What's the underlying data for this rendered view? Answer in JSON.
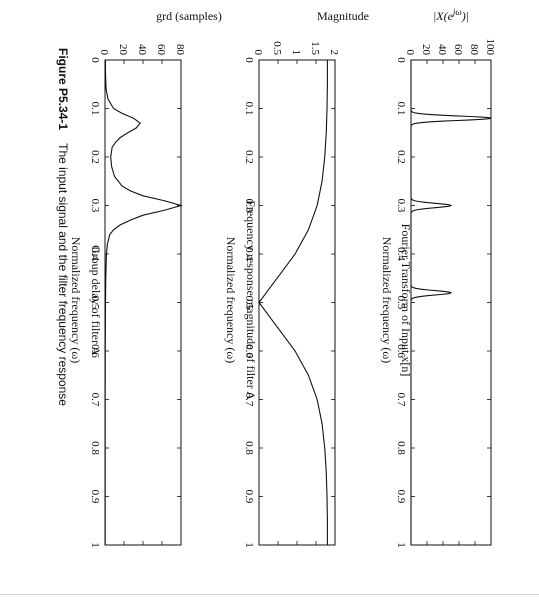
{
  "figure_caption": {
    "label": "Figure P5.34-1",
    "text": "The input signal and the filter frequency response"
  },
  "chart_data": [
    {
      "id": "fourier",
      "type": "line",
      "title": "Fourier Transform of Input x[n]",
      "xlabel": "Normalized frequency (ω)",
      "ylabel": "|X(e^{jω})|",
      "xlim": [
        0,
        1
      ],
      "ylim": [
        0,
        100
      ],
      "xticks": [
        0,
        0.1,
        0.2,
        0.3,
        0.4,
        0.5,
        0.6,
        0.7,
        0.8,
        0.9,
        1
      ],
      "xtick_labels": [
        "0",
        "0.1",
        "0.2",
        "0.3",
        "0.4",
        "0.5",
        "0.6",
        "0.7",
        "0.8",
        "0.9",
        "1"
      ],
      "yticks": [
        0,
        20,
        40,
        60,
        80,
        100
      ],
      "ytick_labels": [
        "0",
        "20",
        "40",
        "60",
        "80",
        "100"
      ],
      "grid": false,
      "peaks": [
        {
          "x": 0.12,
          "y": 100
        },
        {
          "x": 0.3,
          "y": 50
        },
        {
          "x": 0.48,
          "y": 50
        }
      ]
    },
    {
      "id": "magnitude",
      "type": "line",
      "title": "Frequency response magnitude of filter A",
      "xlabel": "Normalized frequency (ω)",
      "ylabel": "Magnitude",
      "xlim": [
        0,
        1
      ],
      "ylim": [
        0,
        2
      ],
      "xticks": [
        0,
        0.1,
        0.2,
        0.3,
        0.4,
        0.5,
        0.6,
        0.7,
        0.8,
        0.9,
        1
      ],
      "xtick_labels": [
        "0",
        "0.1",
        "0.2",
        "0.3",
        "0.4",
        "0.5",
        "0.6",
        "0.7",
        "0.8",
        "0.9",
        "1"
      ],
      "yticks": [
        0,
        0.5,
        1,
        1.5,
        2
      ],
      "ytick_labels": [
        "0",
        "0.5",
        "1",
        "1.5",
        "2"
      ],
      "grid": false,
      "x": [
        0,
        0.05,
        0.1,
        0.15,
        0.2,
        0.25,
        0.3,
        0.35,
        0.4,
        0.42,
        0.44,
        0.46,
        0.48,
        0.5,
        0.52,
        0.54,
        0.56,
        0.58,
        0.6,
        0.65,
        0.7,
        0.75,
        0.8,
        0.85,
        0.9,
        0.95,
        1
      ],
      "values": [
        1.8,
        1.8,
        1.79,
        1.77,
        1.73,
        1.66,
        1.53,
        1.3,
        0.95,
        0.76,
        0.57,
        0.38,
        0.19,
        0.0,
        0.19,
        0.38,
        0.57,
        0.76,
        0.95,
        1.3,
        1.53,
        1.66,
        1.73,
        1.77,
        1.79,
        1.8,
        1.8
      ]
    },
    {
      "id": "group_delay",
      "type": "line",
      "title": "Group delay of filter A",
      "xlabel": "Normalized frequency (ω)",
      "ylabel": "grd (samples)",
      "xlim": [
        0,
        1
      ],
      "ylim": [
        0,
        80
      ],
      "xticks": [
        0,
        0.1,
        0.2,
        0.3,
        0.4,
        0.5,
        0.6,
        0.7,
        0.8,
        0.9,
        1
      ],
      "xtick_labels": [
        "0",
        "0.1",
        "0.2",
        "0.3",
        "0.4",
        "0.5",
        "0.6",
        "0.7",
        "0.8",
        "0.9",
        "1"
      ],
      "yticks": [
        0,
        20,
        40,
        60,
        80
      ],
      "ytick_labels": [
        "0",
        "20",
        "40",
        "60",
        "80"
      ],
      "grid": false,
      "x": [
        0,
        0.02,
        0.04,
        0.06,
        0.08,
        0.1,
        0.11,
        0.12,
        0.13,
        0.14,
        0.15,
        0.16,
        0.17,
        0.18,
        0.2,
        0.22,
        0.24,
        0.26,
        0.27,
        0.28,
        0.29,
        0.3,
        0.31,
        0.32,
        0.33,
        0.34,
        0.35,
        0.36,
        0.38,
        0.4,
        0.45,
        0.5,
        0.6,
        0.7,
        0.8,
        0.9,
        1
      ],
      "values": [
        0.5,
        0.5,
        0.7,
        1.2,
        3,
        9,
        18,
        30,
        37,
        33,
        24,
        16,
        11,
        7.5,
        6,
        7,
        10,
        18,
        27,
        40,
        62,
        80,
        62,
        40,
        27,
        16,
        9,
        5,
        2.5,
        1.5,
        0.8,
        0.5,
        0.3,
        0.2,
        0.2,
        0.2,
        0.2
      ]
    }
  ]
}
